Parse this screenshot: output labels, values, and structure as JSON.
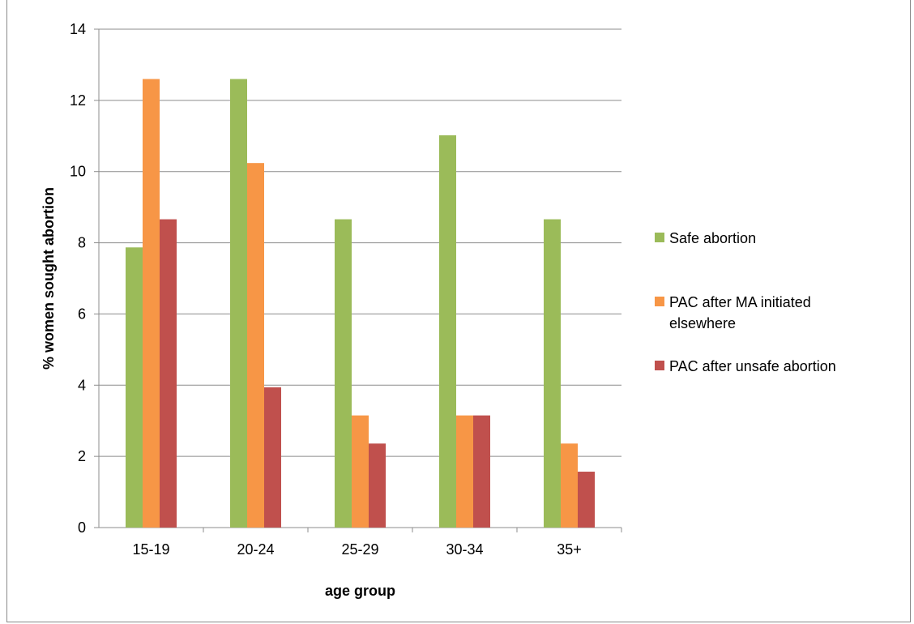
{
  "chart_data": {
    "type": "bar",
    "title": "",
    "xlabel": "age group",
    "ylabel": "% women sought abortion",
    "categories": [
      "15-19",
      "20-24",
      "25-29",
      "30-34",
      "35+"
    ],
    "ylim": [
      0,
      14
    ],
    "yticks": [
      0,
      2,
      4,
      6,
      8,
      10,
      12,
      14
    ],
    "grid": true,
    "legend_position": "right",
    "series": [
      {
        "name": "Safe abortion",
        "color": "#9bbb59",
        "values": [
          7.87,
          12.6,
          8.66,
          11.02,
          8.66
        ]
      },
      {
        "name": "PAC after MA initiated elsewhere",
        "color": "#f79646",
        "values": [
          12.6,
          10.24,
          3.15,
          3.15,
          2.36
        ]
      },
      {
        "name": "PAC after unsafe abortion",
        "color": "#c0504d",
        "values": [
          8.66,
          3.94,
          2.36,
          3.15,
          1.57
        ]
      }
    ]
  }
}
